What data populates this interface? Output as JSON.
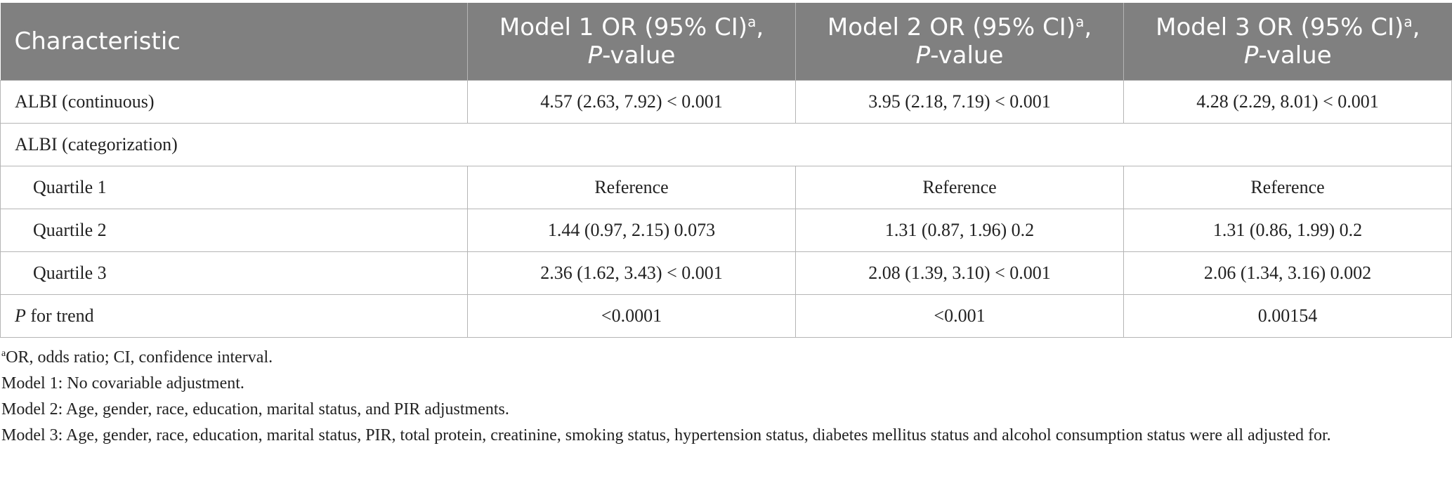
{
  "header": {
    "characteristic": "Characteristic",
    "models": [
      {
        "label": "Model 1 OR (95% CI)",
        "sup": "a",
        "comma": ",",
        "p_italic": "P",
        "p_rest": "-value"
      },
      {
        "label": "Model 2 OR (95% CI)",
        "sup": "a",
        "comma": ",",
        "p_italic": "P",
        "p_rest": "-value"
      },
      {
        "label": "Model 3 OR (95% CI)",
        "sup": "a",
        "comma": ",",
        "p_italic": "P",
        "p_rest": "-value"
      }
    ]
  },
  "rows": {
    "continuous": {
      "label": "ALBI (continuous)",
      "m1": "4.57 (2.63, 7.92) < 0.001",
      "m2": "3.95 (2.18, 7.19) < 0.001",
      "m3": "4.28 (2.29, 8.01) < 0.001"
    },
    "categorization": {
      "label": "ALBI (categorization)"
    },
    "quartile1": {
      "label": "Quartile 1",
      "m1": "Reference",
      "m2": "Reference",
      "m3": "Reference"
    },
    "quartile2": {
      "label": "Quartile 2",
      "m1": "1.44 (0.97, 2.15) 0.073",
      "m2": "1.31 (0.87, 1.96) 0.2",
      "m3": "1.31 (0.86, 1.99) 0.2"
    },
    "quartile3": {
      "label": "Quartile 3",
      "m1": "2.36 (1.62, 3.43) < 0.001",
      "m2": "2.08 (1.39, 3.10) < 0.001",
      "m3": "2.06 (1.34, 3.16) 0.002"
    },
    "trend": {
      "label_italic": "P",
      "label_rest": " for trend",
      "m1": "<0.0001",
      "m2": "<0.001",
      "m3": "0.00154"
    }
  },
  "footnotes": {
    "abbrev_sup": "a",
    "abbrev": "OR, odds ratio; CI, confidence interval.",
    "model1": "Model 1: No covariable adjustment.",
    "model2": "Model 2: Age, gender, race, education, marital status, and PIR adjustments.",
    "model3": "Model 3: Age, gender, race, education, marital status, PIR, total protein, creatinine, smoking status, hypertension status, diabetes mellitus status and alcohol consumption status were all adjusted for."
  }
}
